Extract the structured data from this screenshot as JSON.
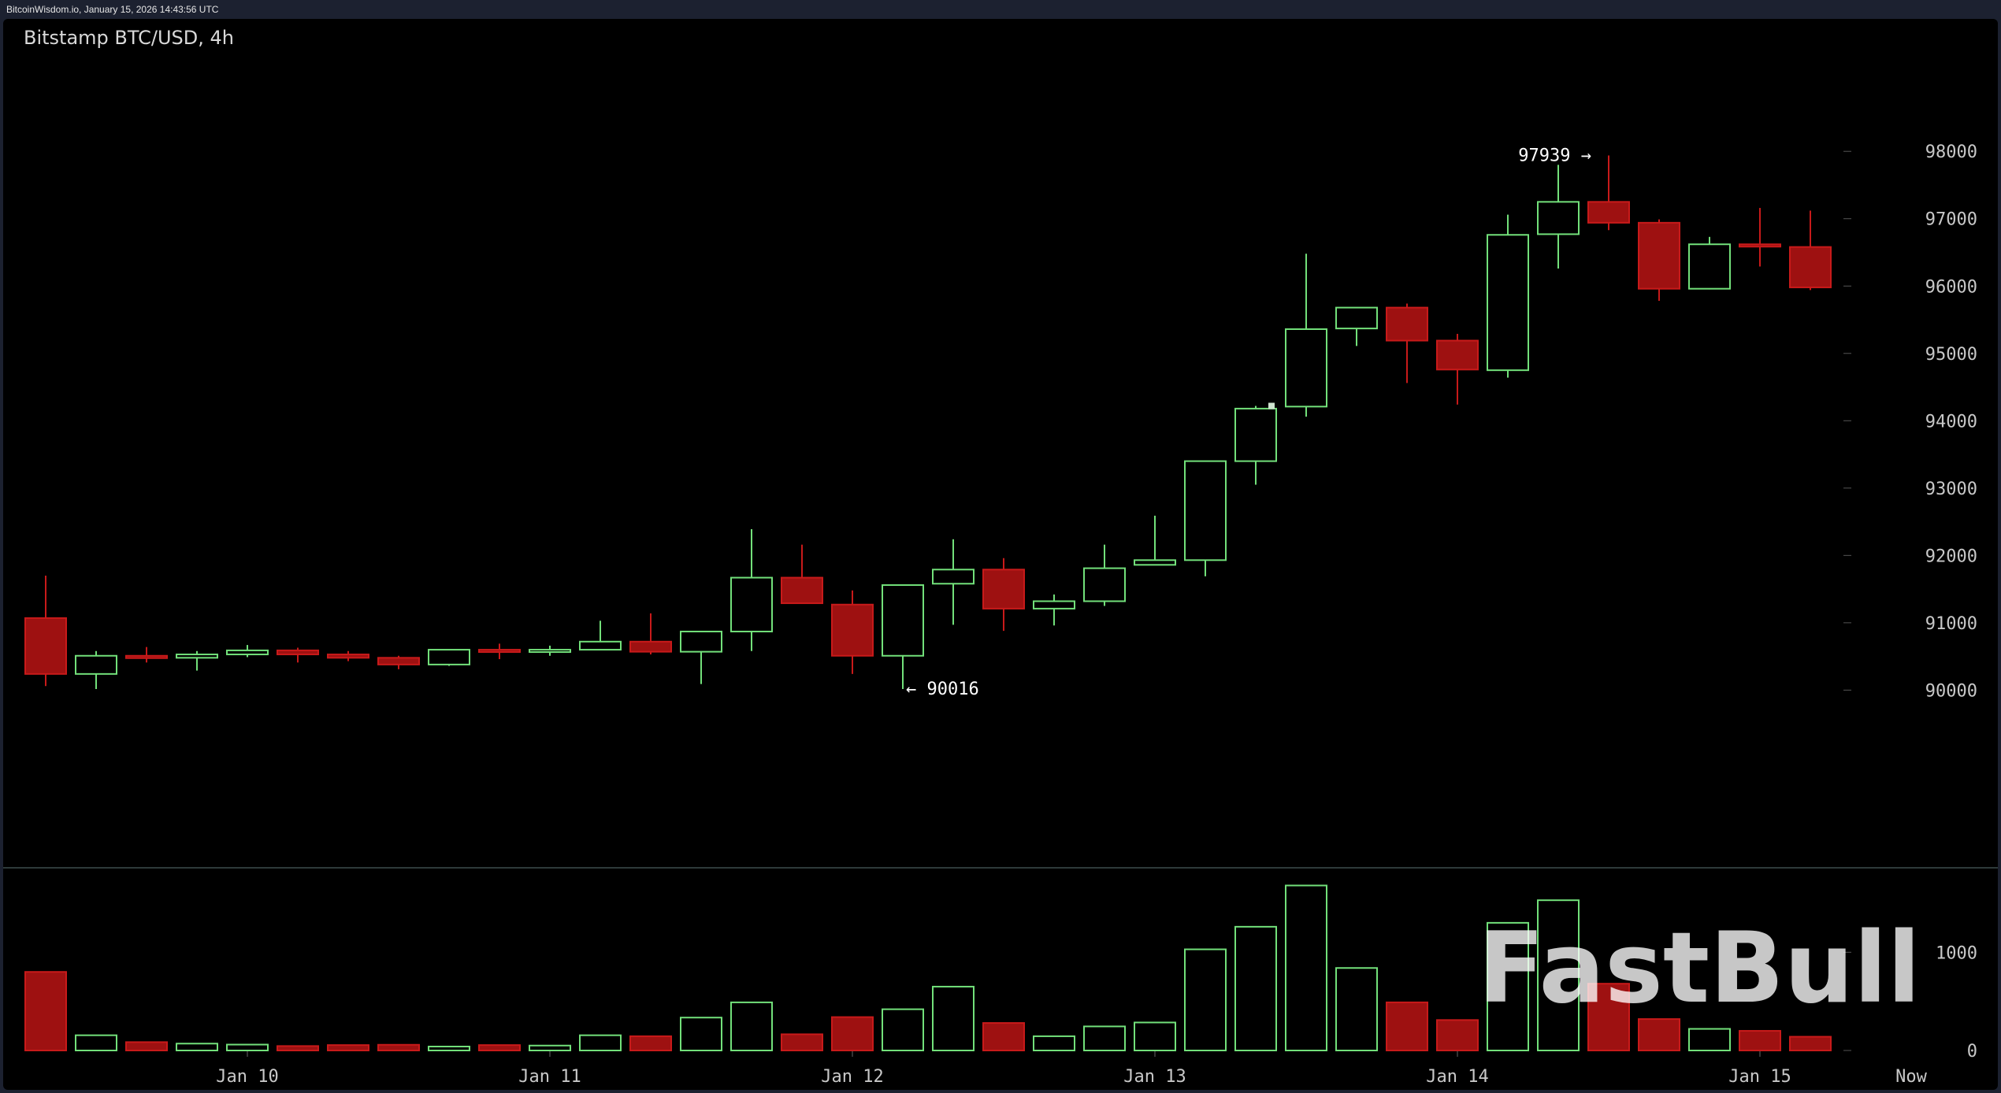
{
  "header": {
    "source_line": "BitcoinWisdom.io, January 15, 2026 14:43:56 UTC",
    "title": "Bitstamp BTC/USD, 4h"
  },
  "watermark": "FastBull",
  "colors": {
    "up": "#72e07a",
    "down": "#c81a1a",
    "down_fill": "#9e1111",
    "background": "#000000",
    "divider": "#2e3a3a"
  },
  "chart_data": {
    "type": "candlestick",
    "title": "Bitstamp BTC/USD, 4h",
    "price_axis": {
      "ticks": [
        90000,
        91000,
        92000,
        93000,
        94000,
        95000,
        96000,
        97000,
        98000
      ],
      "range": [
        88800,
        98400
      ],
      "side": "right"
    },
    "volume_axis": {
      "ticks": [
        0,
        1000
      ],
      "range": [
        0,
        1700
      ]
    },
    "x_tick_labels": [
      {
        "label": "Jan 10",
        "at_candle": 4
      },
      {
        "label": "Jan 11",
        "at_candle": 10
      },
      {
        "label": "Jan 12",
        "at_candle": 16
      },
      {
        "label": "Jan 13",
        "at_candle": 22
      },
      {
        "label": "Jan 14",
        "at_candle": 28
      },
      {
        "label": "Jan 15",
        "at_candle": 34
      },
      {
        "label": "Now",
        "at_candle": 37
      }
    ],
    "candles": [
      {
        "o": 91070,
        "h": 91700,
        "l": 90060,
        "c": 90240,
        "v": 800
      },
      {
        "o": 90240,
        "h": 90580,
        "l": 90016,
        "c": 90510,
        "v": 155
      },
      {
        "o": 90510,
        "h": 90640,
        "l": 90410,
        "c": 90480,
        "v": 85
      },
      {
        "o": 90480,
        "h": 90580,
        "l": 90290,
        "c": 90530,
        "v": 70
      },
      {
        "o": 90530,
        "h": 90670,
        "l": 90490,
        "c": 90590,
        "v": 60
      },
      {
        "o": 90590,
        "h": 90630,
        "l": 90410,
        "c": 90530,
        "v": 45
      },
      {
        "o": 90530,
        "h": 90580,
        "l": 90430,
        "c": 90480,
        "v": 55
      },
      {
        "o": 90480,
        "h": 90510,
        "l": 90310,
        "c": 90380,
        "v": 58
      },
      {
        "o": 90380,
        "h": 90600,
        "l": 90360,
        "c": 90600,
        "v": 40
      },
      {
        "o": 90600,
        "h": 90690,
        "l": 90460,
        "c": 90580,
        "v": 55
      },
      {
        "o": 90580,
        "h": 90660,
        "l": 90510,
        "c": 90600,
        "v": 50
      },
      {
        "o": 90600,
        "h": 91030,
        "l": 90600,
        "c": 90720,
        "v": 155
      },
      {
        "o": 90720,
        "h": 91140,
        "l": 90530,
        "c": 90570,
        "v": 145
      },
      {
        "o": 90570,
        "h": 90870,
        "l": 90090,
        "c": 90870,
        "v": 335
      },
      {
        "o": 90870,
        "h": 92390,
        "l": 90580,
        "c": 91670,
        "v": 490
      },
      {
        "o": 91670,
        "h": 92160,
        "l": 91290,
        "c": 91290,
        "v": 165
      },
      {
        "o": 91270,
        "h": 91480,
        "l": 90240,
        "c": 90510,
        "v": 340
      },
      {
        "o": 90510,
        "h": 91560,
        "l": 90016,
        "c": 91560,
        "v": 420
      },
      {
        "o": 91580,
        "h": 92240,
        "l": 90970,
        "c": 91790,
        "v": 650
      },
      {
        "o": 91790,
        "h": 91960,
        "l": 90880,
        "c": 91210,
        "v": 280
      },
      {
        "o": 91210,
        "h": 91420,
        "l": 90960,
        "c": 91320,
        "v": 145
      },
      {
        "o": 91320,
        "h": 92160,
        "l": 91250,
        "c": 91810,
        "v": 245
      },
      {
        "o": 91860,
        "h": 92590,
        "l": 91860,
        "c": 91930,
        "v": 285
      },
      {
        "o": 91930,
        "h": 93400,
        "l": 91690,
        "c": 93400,
        "v": 1030
      },
      {
        "o": 93400,
        "h": 94220,
        "l": 93050,
        "c": 94180,
        "v": 1260
      },
      {
        "o": 94210,
        "h": 96480,
        "l": 94060,
        "c": 95360,
        "v": 1680
      },
      {
        "o": 95370,
        "h": 95680,
        "l": 95110,
        "c": 95680,
        "v": 840
      },
      {
        "o": 95680,
        "h": 95740,
        "l": 94560,
        "c": 95190,
        "v": 490
      },
      {
        "o": 95190,
        "h": 95290,
        "l": 94240,
        "c": 94760,
        "v": 310
      },
      {
        "o": 94750,
        "h": 97060,
        "l": 94640,
        "c": 96760,
        "v": 1300
      },
      {
        "o": 96770,
        "h": 97800,
        "l": 96260,
        "c": 97250,
        "v": 1530
      },
      {
        "o": 97250,
        "h": 97939,
        "l": 96830,
        "c": 96940,
        "v": 680
      },
      {
        "o": 96940,
        "h": 96990,
        "l": 95780,
        "c": 95960,
        "v": 320
      },
      {
        "o": 95960,
        "h": 96730,
        "l": 95950,
        "c": 96620,
        "v": 220
      },
      {
        "o": 96620,
        "h": 97160,
        "l": 96290,
        "c": 96600,
        "v": 200
      },
      {
        "o": 96580,
        "h": 97120,
        "l": 95940,
        "c": 95980,
        "v": 140
      }
    ],
    "annotations": [
      {
        "text": "97939 →",
        "candle": 31,
        "price": 97939,
        "side": "left"
      },
      {
        "text": "← 90016",
        "candle": 17,
        "price": 90016,
        "side": "right"
      }
    ]
  }
}
